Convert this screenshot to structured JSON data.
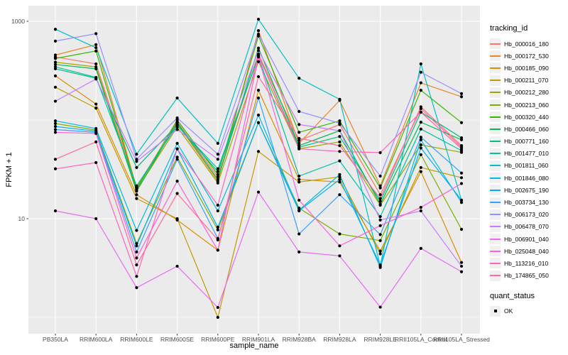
{
  "figure": {
    "background": "#FFFFFF",
    "panel_background": "#EBEBEB",
    "grid_color": "#FFFFFF",
    "tick_label_color": "#4D4D4D",
    "point_color": "#000000"
  },
  "chart_data": {
    "type": "line",
    "title": "",
    "xlabel": "sample_name",
    "ylabel": "FPKM + 1",
    "yscale": "log10",
    "ylim": [
      0.68,
      1440
    ],
    "grid": true,
    "legend_position": "right",
    "yticks": [
      {
        "value": 1000,
        "label": "1000"
      },
      {
        "value": 10,
        "label": "10"
      }
    ],
    "minor_yticks": [
      100,
      1
    ],
    "categories": [
      "PB350LA",
      "RRIM600LA",
      "RRIM600LE",
      "RRIM600SE",
      "RRIM600PE",
      "RRIM901LA",
      "RRIM928BA",
      "RRIM928LA",
      "RRIM928LE",
      "RRII105LA_Control",
      "RRII105LA_Stressed"
    ],
    "legend": {
      "title": "tracking_id"
    },
    "quant_status": {
      "title": "quant_status",
      "items": [
        {
          "label": "OK"
        }
      ]
    },
    "series": [
      {
        "name": "Hb_000016_180",
        "color": "#F8766D",
        "values": [
          435,
          370,
          21,
          96,
          26.5,
          465,
          62,
          90,
          17.5,
          130,
          53
        ]
      },
      {
        "name": "Hb_000172_530",
        "color": "#E88526",
        "values": [
          455,
          580,
          20.5,
          91,
          24,
          805,
          58,
          158,
          21.5,
          238,
          172
        ]
      },
      {
        "name": "Hb_000185_090",
        "color": "#D89000",
        "values": [
          280,
          145,
          17.5,
          9.7,
          4.8,
          200,
          25,
          23.5,
          4.7,
          30,
          3.6
        ]
      },
      {
        "name": "Hb_000211_070",
        "color": "#C09B00",
        "values": [
          215,
          132,
          16,
          10,
          1.0,
          48,
          23.5,
          26.5,
          4.4,
          33,
          26
        ]
      },
      {
        "name": "Hb_000212_280",
        "color": "#A3A500",
        "values": [
          385,
          345,
          19.5,
          85,
          23,
          390,
          51,
          60,
          13.7,
          56,
          47
        ]
      },
      {
        "name": "Hb_000213_060",
        "color": "#7CAE00",
        "values": [
          92,
          79,
          5.6,
          42,
          7.7,
          94,
          12.8,
          7,
          6.0,
          44.5,
          7.8
        ]
      },
      {
        "name": "Hb_000320_440",
        "color": "#39B600",
        "values": [
          420,
          500,
          20,
          100,
          28,
          710,
          75,
          98,
          20.5,
          200,
          94
        ]
      },
      {
        "name": "Hb_000466_060",
        "color": "#00BB4E",
        "values": [
          365,
          330,
          19,
          94,
          25,
          535,
          55,
          78,
          14,
          95,
          63
        ]
      },
      {
        "name": "Hb_000771_160",
        "color": "#00BF7D",
        "values": [
          330,
          265,
          33,
          89,
          30,
          450,
          53,
          68,
          15,
          120,
          66
        ]
      },
      {
        "name": "Hb_001477_010",
        "color": "#00C1A3",
        "values": [
          345,
          270,
          21.5,
          88,
          32,
          440,
          27,
          38.5,
          10.5,
          81,
          49
        ]
      },
      {
        "name": "Hb_001811_060",
        "color": "#00BFC4",
        "values": [
          830,
          540,
          45,
          167,
          58,
          1050,
          265,
          162,
          3.3,
          370,
          15.4
        ]
      },
      {
        "name": "Hb_001846_080",
        "color": "#00BAE0",
        "values": [
          98,
          82,
          7.6,
          58,
          12,
          112,
          12.2,
          28,
          3.2,
          63,
          14.6
        ]
      },
      {
        "name": "Hb_002675_190",
        "color": "#00B0F6",
        "values": [
          86,
          77,
          5.3,
          51,
          8.2,
          94,
          12,
          25,
          3.4,
          52,
          15.4
        ]
      },
      {
        "name": "Hb_003734_130",
        "color": "#35A2FF",
        "values": [
          80,
          75,
          4.6,
          40,
          6.3,
          167,
          7,
          17.5,
          6.9,
          67,
          29
        ]
      },
      {
        "name": "Hb_006173_020",
        "color": "#9590FF",
        "values": [
          630,
          750,
          40,
          105,
          45,
          740,
          122,
          93,
          27,
          305,
          185
        ]
      },
      {
        "name": "Hb_006478_070",
        "color": "#C77CFF",
        "values": [
          155,
          260,
          38,
          80,
          40,
          505,
          90,
          78,
          9.7,
          12,
          3.3
        ]
      },
      {
        "name": "Hb_006901_040",
        "color": "#E76BF3",
        "values": [
          12,
          10,
          2.0,
          3.3,
          1.26,
          18.6,
          4.6,
          4.2,
          1.27,
          5,
          2.9
        ]
      },
      {
        "name": "Hb_025048_040",
        "color": "#FA62DB",
        "values": [
          75,
          73,
          4.0,
          24,
          4.8,
          435,
          15.4,
          5.3,
          8.5,
          13,
          22.7
        ]
      },
      {
        "name": "Hb_113216_010",
        "color": "#FF62BC",
        "values": [
          32,
          37,
          2.6,
          51,
          13.7,
          450,
          51,
          48,
          46.7,
          120,
          51
        ]
      },
      {
        "name": "Hb_174865_050",
        "color": "#FF6A98",
        "values": [
          40,
          60,
          3.4,
          18,
          6.1,
          275,
          65,
          55,
          16,
          136,
          55
        ]
      }
    ]
  }
}
